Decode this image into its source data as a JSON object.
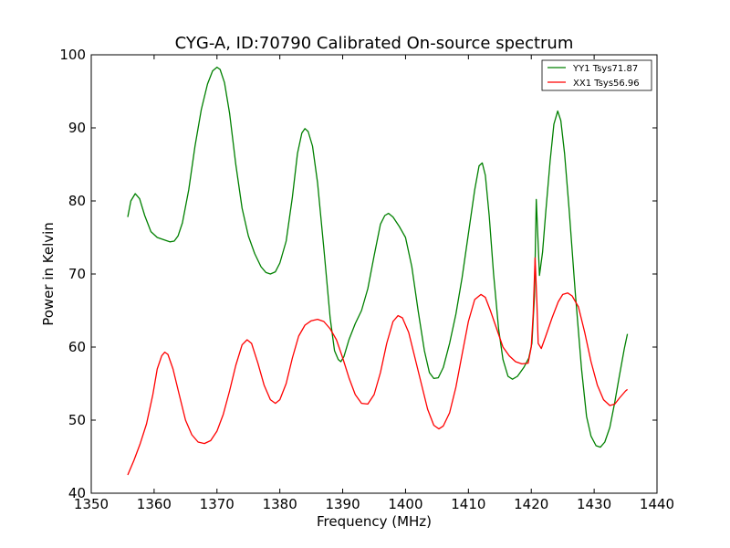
{
  "chart_data": {
    "type": "line",
    "title": "CYG-A, ID:70790 Calibrated On-source spectrum",
    "xlabel": "Frequency (MHz)",
    "ylabel": "Power in Kelvin",
    "xlim": [
      1350,
      1440
    ],
    "ylim": [
      40,
      100
    ],
    "xticks": [
      1350,
      1360,
      1370,
      1380,
      1390,
      1400,
      1410,
      1420,
      1430,
      1440
    ],
    "yticks": [
      40,
      50,
      60,
      70,
      80,
      90,
      100
    ],
    "grid": false,
    "legend_position": "top-right",
    "series": [
      {
        "name": "YY1 Tsys71.87",
        "color": "#008000",
        "points": [
          [
            1355.8,
            77.8
          ],
          [
            1356.3,
            80.0
          ],
          [
            1357.0,
            81.0
          ],
          [
            1357.7,
            80.3
          ],
          [
            1358.5,
            78.0
          ],
          [
            1359.5,
            75.8
          ],
          [
            1360.5,
            75.0
          ],
          [
            1361.5,
            74.7
          ],
          [
            1362.5,
            74.4
          ],
          [
            1363.2,
            74.5
          ],
          [
            1363.8,
            75.2
          ],
          [
            1364.5,
            77.0
          ],
          [
            1365.5,
            81.5
          ],
          [
            1366.5,
            87.5
          ],
          [
            1367.5,
            92.5
          ],
          [
            1368.5,
            96.0
          ],
          [
            1369.3,
            97.8
          ],
          [
            1370.0,
            98.3
          ],
          [
            1370.5,
            98.0
          ],
          [
            1371.2,
            96.2
          ],
          [
            1372.0,
            92.0
          ],
          [
            1373.0,
            85.0
          ],
          [
            1374.0,
            79.0
          ],
          [
            1375.0,
            75.2
          ],
          [
            1376.0,
            72.8
          ],
          [
            1377.0,
            71.0
          ],
          [
            1377.8,
            70.2
          ],
          [
            1378.5,
            70.0
          ],
          [
            1379.3,
            70.3
          ],
          [
            1380.0,
            71.5
          ],
          [
            1381.0,
            74.5
          ],
          [
            1382.0,
            80.5
          ],
          [
            1382.8,
            86.5
          ],
          [
            1383.5,
            89.3
          ],
          [
            1384.0,
            89.9
          ],
          [
            1384.5,
            89.5
          ],
          [
            1385.2,
            87.5
          ],
          [
            1386.0,
            82.5
          ],
          [
            1387.0,
            73.5
          ],
          [
            1388.0,
            64.0
          ],
          [
            1388.7,
            59.5
          ],
          [
            1389.3,
            58.3
          ],
          [
            1389.7,
            58.0
          ],
          [
            1390.2,
            58.7
          ],
          [
            1391.0,
            61.0
          ],
          [
            1392.0,
            63.2
          ],
          [
            1393.0,
            65.0
          ],
          [
            1394.0,
            68.0
          ],
          [
            1395.0,
            72.5
          ],
          [
            1396.0,
            76.8
          ],
          [
            1396.7,
            78.0
          ],
          [
            1397.3,
            78.3
          ],
          [
            1398.0,
            77.8
          ],
          [
            1399.0,
            76.5
          ],
          [
            1400.0,
            75.0
          ],
          [
            1401.0,
            71.0
          ],
          [
            1402.0,
            65.0
          ],
          [
            1403.0,
            59.5
          ],
          [
            1403.8,
            56.5
          ],
          [
            1404.5,
            55.7
          ],
          [
            1405.2,
            55.8
          ],
          [
            1406.0,
            57.2
          ],
          [
            1407.0,
            60.5
          ],
          [
            1408.0,
            64.5
          ],
          [
            1409.0,
            69.5
          ],
          [
            1410.0,
            75.5
          ],
          [
            1411.0,
            81.5
          ],
          [
            1411.7,
            84.8
          ],
          [
            1412.2,
            85.2
          ],
          [
            1412.7,
            83.5
          ],
          [
            1413.3,
            78.0
          ],
          [
            1414.0,
            70.0
          ],
          [
            1414.8,
            62.5
          ],
          [
            1415.5,
            58.3
          ],
          [
            1416.3,
            56.0
          ],
          [
            1417.0,
            55.6
          ],
          [
            1417.8,
            56.0
          ],
          [
            1418.8,
            57.2
          ],
          [
            1419.6,
            58.5
          ],
          [
            1420.1,
            60.5
          ],
          [
            1420.5,
            67.0
          ],
          [
            1420.8,
            80.2
          ],
          [
            1421.1,
            74.0
          ],
          [
            1421.3,
            69.8
          ],
          [
            1421.8,
            73.0
          ],
          [
            1422.3,
            78.5
          ],
          [
            1423.0,
            85.5
          ],
          [
            1423.6,
            90.5
          ],
          [
            1424.2,
            92.3
          ],
          [
            1424.7,
            91.0
          ],
          [
            1425.3,
            86.5
          ],
          [
            1426.0,
            79.0
          ],
          [
            1427.0,
            67.5
          ],
          [
            1428.0,
            57.0
          ],
          [
            1428.8,
            50.5
          ],
          [
            1429.5,
            47.8
          ],
          [
            1430.3,
            46.5
          ],
          [
            1431.0,
            46.3
          ],
          [
            1431.7,
            47.0
          ],
          [
            1432.5,
            49.0
          ],
          [
            1433.3,
            52.5
          ],
          [
            1434.0,
            56.0
          ],
          [
            1434.8,
            59.8
          ],
          [
            1435.3,
            61.8
          ]
        ]
      },
      {
        "name": "XX1 Tsys56.96",
        "color": "#ff0000",
        "points": [
          [
            1355.8,
            42.5
          ],
          [
            1356.8,
            44.5
          ],
          [
            1357.8,
            46.8
          ],
          [
            1358.8,
            49.5
          ],
          [
            1359.8,
            53.5
          ],
          [
            1360.5,
            57.0
          ],
          [
            1361.2,
            58.8
          ],
          [
            1361.7,
            59.3
          ],
          [
            1362.2,
            59.0
          ],
          [
            1363.0,
            57.0
          ],
          [
            1364.0,
            53.5
          ],
          [
            1365.0,
            50.0
          ],
          [
            1366.0,
            48.0
          ],
          [
            1367.0,
            47.0
          ],
          [
            1368.0,
            46.8
          ],
          [
            1369.0,
            47.2
          ],
          [
            1370.0,
            48.5
          ],
          [
            1371.0,
            50.8
          ],
          [
            1372.0,
            54.0
          ],
          [
            1373.0,
            57.5
          ],
          [
            1374.0,
            60.3
          ],
          [
            1374.8,
            61.0
          ],
          [
            1375.5,
            60.5
          ],
          [
            1376.5,
            57.8
          ],
          [
            1377.5,
            54.8
          ],
          [
            1378.5,
            52.8
          ],
          [
            1379.3,
            52.3
          ],
          [
            1380.0,
            52.8
          ],
          [
            1381.0,
            55.0
          ],
          [
            1382.0,
            58.5
          ],
          [
            1383.0,
            61.5
          ],
          [
            1384.0,
            63.0
          ],
          [
            1385.0,
            63.6
          ],
          [
            1386.0,
            63.8
          ],
          [
            1387.0,
            63.5
          ],
          [
            1388.0,
            62.5
          ],
          [
            1389.0,
            61.0
          ],
          [
            1390.0,
            58.5
          ],
          [
            1391.0,
            55.8
          ],
          [
            1392.0,
            53.5
          ],
          [
            1393.0,
            52.3
          ],
          [
            1394.0,
            52.2
          ],
          [
            1395.0,
            53.5
          ],
          [
            1396.0,
            56.5
          ],
          [
            1397.0,
            60.5
          ],
          [
            1398.0,
            63.5
          ],
          [
            1398.8,
            64.3
          ],
          [
            1399.5,
            64.0
          ],
          [
            1400.5,
            62.0
          ],
          [
            1401.5,
            58.5
          ],
          [
            1402.5,
            55.0
          ],
          [
            1403.5,
            51.5
          ],
          [
            1404.5,
            49.3
          ],
          [
            1405.3,
            48.8
          ],
          [
            1406.0,
            49.2
          ],
          [
            1407.0,
            51.0
          ],
          [
            1408.0,
            54.5
          ],
          [
            1409.0,
            59.0
          ],
          [
            1410.0,
            63.5
          ],
          [
            1411.0,
            66.5
          ],
          [
            1412.0,
            67.2
          ],
          [
            1412.7,
            66.8
          ],
          [
            1413.5,
            65.0
          ],
          [
            1414.5,
            62.5
          ],
          [
            1415.5,
            60.0
          ],
          [
            1416.5,
            58.8
          ],
          [
            1417.5,
            58.0
          ],
          [
            1418.5,
            57.7
          ],
          [
            1419.5,
            57.8
          ],
          [
            1420.0,
            60.0
          ],
          [
            1420.3,
            64.5
          ],
          [
            1420.6,
            72.2
          ],
          [
            1420.9,
            66.0
          ],
          [
            1421.1,
            60.5
          ],
          [
            1421.6,
            59.8
          ],
          [
            1422.3,
            61.5
          ],
          [
            1423.3,
            64.0
          ],
          [
            1424.3,
            66.2
          ],
          [
            1425.0,
            67.2
          ],
          [
            1425.8,
            67.4
          ],
          [
            1426.5,
            67.0
          ],
          [
            1427.5,
            65.5
          ],
          [
            1428.5,
            62.0
          ],
          [
            1429.5,
            58.0
          ],
          [
            1430.5,
            54.8
          ],
          [
            1431.5,
            52.8
          ],
          [
            1432.5,
            52.0
          ],
          [
            1433.3,
            52.2
          ],
          [
            1434.0,
            53.0
          ],
          [
            1435.0,
            54.0
          ],
          [
            1435.3,
            54.2
          ]
        ]
      }
    ]
  }
}
